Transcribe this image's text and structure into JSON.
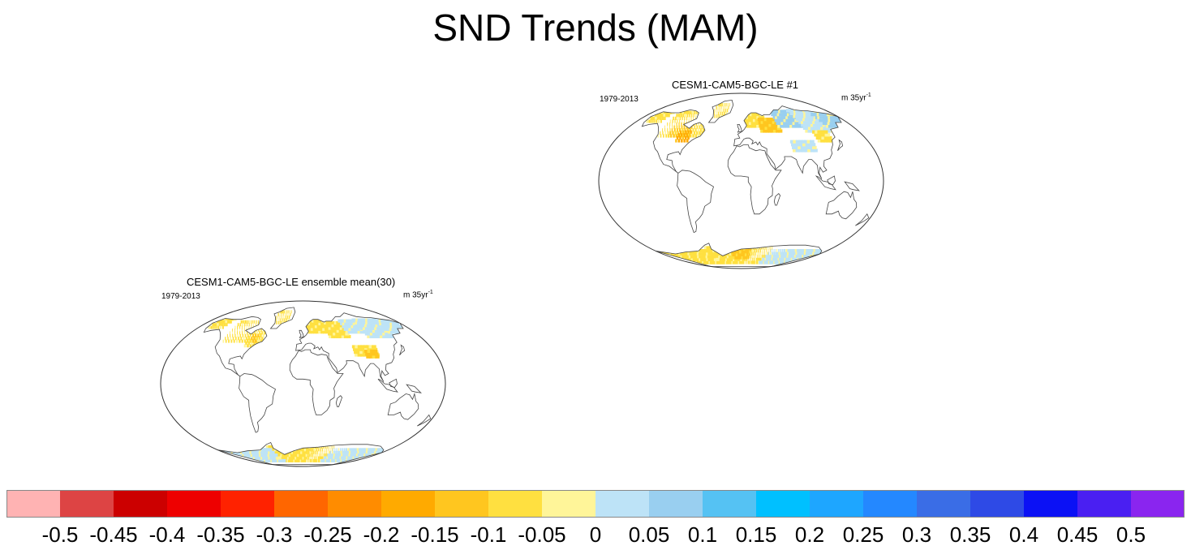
{
  "title": "SND Trends (MAM)",
  "panels": [
    {
      "id": "ensemble-mean",
      "title": "CESM1-CAM5-BGC-LE ensemble mean(30)",
      "period": "1979-2013",
      "units_base": "m 35yr",
      "units_exp": "-1"
    },
    {
      "id": "member-1",
      "title": "CESM1-CAM5-BGC-LE #1",
      "period": "1979-2013",
      "units_base": "m 35yr",
      "units_exp": "-1"
    }
  ],
  "colorbar": {
    "colors": [
      "#ffb3b3",
      "#dd4444",
      "#cc0000",
      "#ee0000",
      "#ff2200",
      "#ff6600",
      "#ff8c00",
      "#ffaa00",
      "#ffc61f",
      "#ffe040",
      "#fff599",
      "#bde3f7",
      "#99cff0",
      "#55c2f3",
      "#00c0ff",
      "#1ea6ff",
      "#2488ff",
      "#3a6de6",
      "#2e4ae6",
      "#0b11f5",
      "#4a1ff2",
      "#8a25ef"
    ],
    "labels": [
      "-0.5",
      "-0.45",
      "-0.4",
      "-0.35",
      "-0.3",
      "-0.25",
      "-0.2",
      "-0.15",
      "-0.1",
      "-0.05",
      "0",
      "0.05",
      "0.1",
      "0.15",
      "0.2",
      "0.25",
      "0.3",
      "0.35",
      "0.4",
      "0.45",
      "0.5"
    ]
  }
}
